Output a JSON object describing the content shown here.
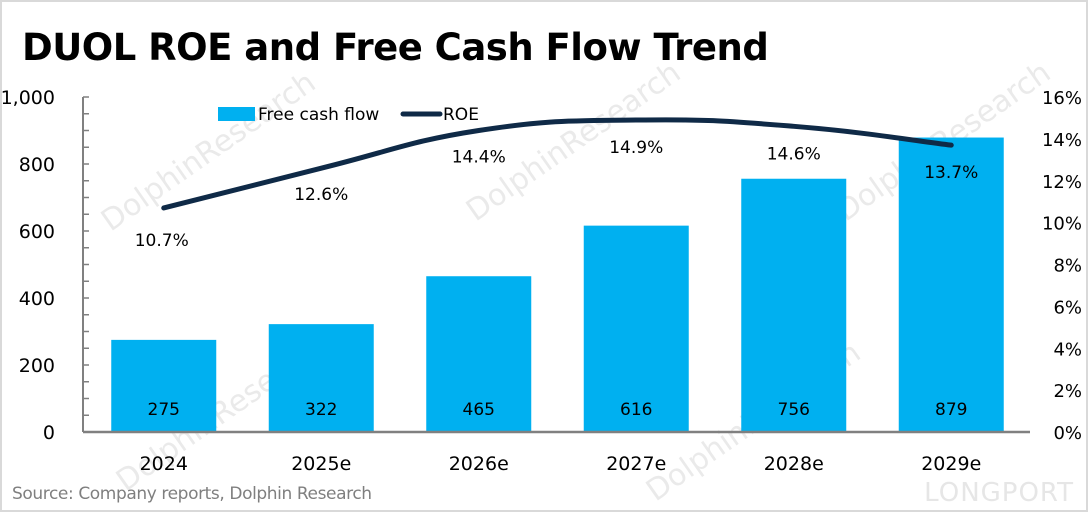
{
  "title": "DUOL ROE and Free Cash Flow Trend",
  "source": "Source: Company reports, Dolphin Research",
  "watermarks": {
    "text": "DolphinResearch",
    "brand": "LONGPORT"
  },
  "colors": {
    "bar": "#00B0F0",
    "line": "#0F2A47",
    "axis": "#808080",
    "text": "#000000",
    "source": "#7F7F7F"
  },
  "chart_data": {
    "type": "bar+line",
    "title": "DUOL ROE and Free Cash Flow Trend",
    "categories": [
      "2024",
      "2025e",
      "2026e",
      "2027e",
      "2028e",
      "2029e"
    ],
    "series": [
      {
        "name": "Free cash flow",
        "type": "bar",
        "axis": "left",
        "values": [
          275,
          322,
          465,
          616,
          756,
          879
        ],
        "labels": [
          "275",
          "322",
          "465",
          "616",
          "756",
          "879"
        ]
      },
      {
        "name": "ROE",
        "type": "line",
        "axis": "right",
        "smooth": true,
        "values": [
          10.7,
          12.6,
          14.4,
          14.9,
          14.6,
          13.7
        ],
        "labels": [
          "10.7%",
          "12.6%",
          "14.4%",
          "14.9%",
          "14.6%",
          "13.7%"
        ]
      }
    ],
    "y_left": {
      "min": 0,
      "max": 1000,
      "ticks": [
        0,
        200,
        400,
        600,
        800,
        1000
      ],
      "tick_labels": [
        "0",
        "200",
        "400",
        "600",
        "800",
        "1,000"
      ],
      "minor_step": 50
    },
    "y_right": {
      "min": 0,
      "max": 16,
      "ticks": [
        0,
        2,
        4,
        6,
        8,
        10,
        12,
        14,
        16
      ],
      "tick_labels": [
        "0%",
        "2%",
        "4%",
        "6%",
        "8%",
        "10%",
        "12%",
        "14%",
        "16%"
      ]
    },
    "xlabel": "",
    "ylabel": "",
    "legend": {
      "position": "top-left",
      "entries": [
        "Free cash flow",
        "ROE"
      ]
    },
    "grid": false
  }
}
